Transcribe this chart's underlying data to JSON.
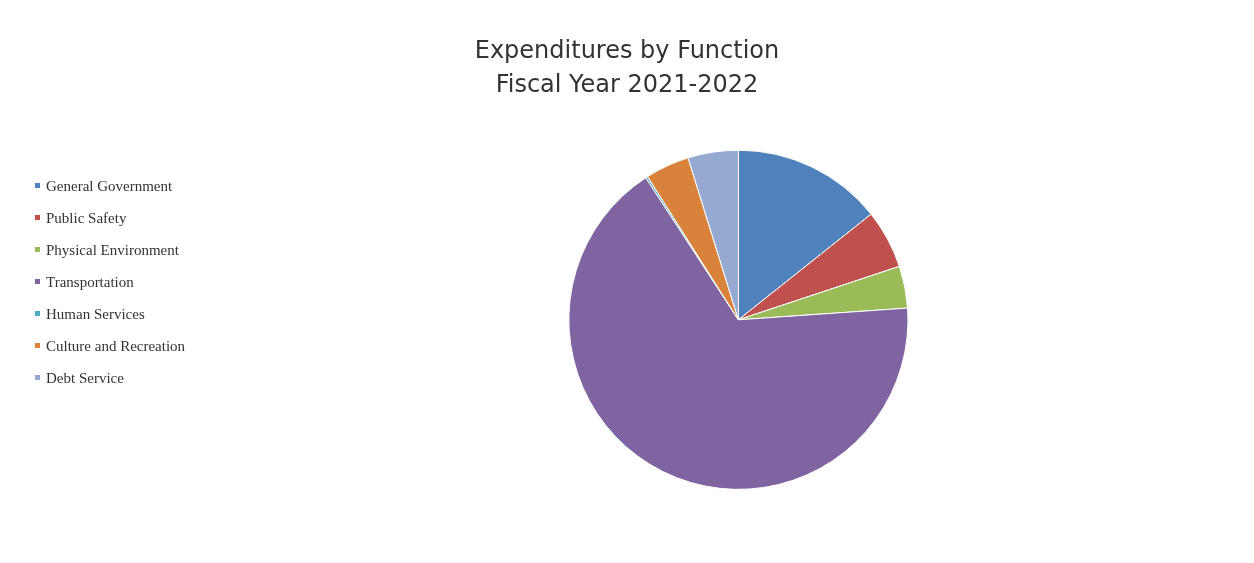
{
  "chart_data": {
    "type": "pie",
    "title": "Expenditures by Function",
    "subtitle": "Fiscal Year 2021-2022",
    "categories": [
      "General Government",
      "Public Safety",
      "Physical Environment",
      "Transportation",
      "Human Services",
      "Culture and Recreation",
      "Debt Service"
    ],
    "values": [
      14.3,
      5.6,
      4.0,
      66.9,
      0.2,
      4.2,
      4.8
    ],
    "colors": [
      "#4f81bd",
      "#c0504d",
      "#9bbb59",
      "#8064a2",
      "#4bacc6",
      "#d9823b",
      "#95a9d1"
    ],
    "legend": "left"
  }
}
